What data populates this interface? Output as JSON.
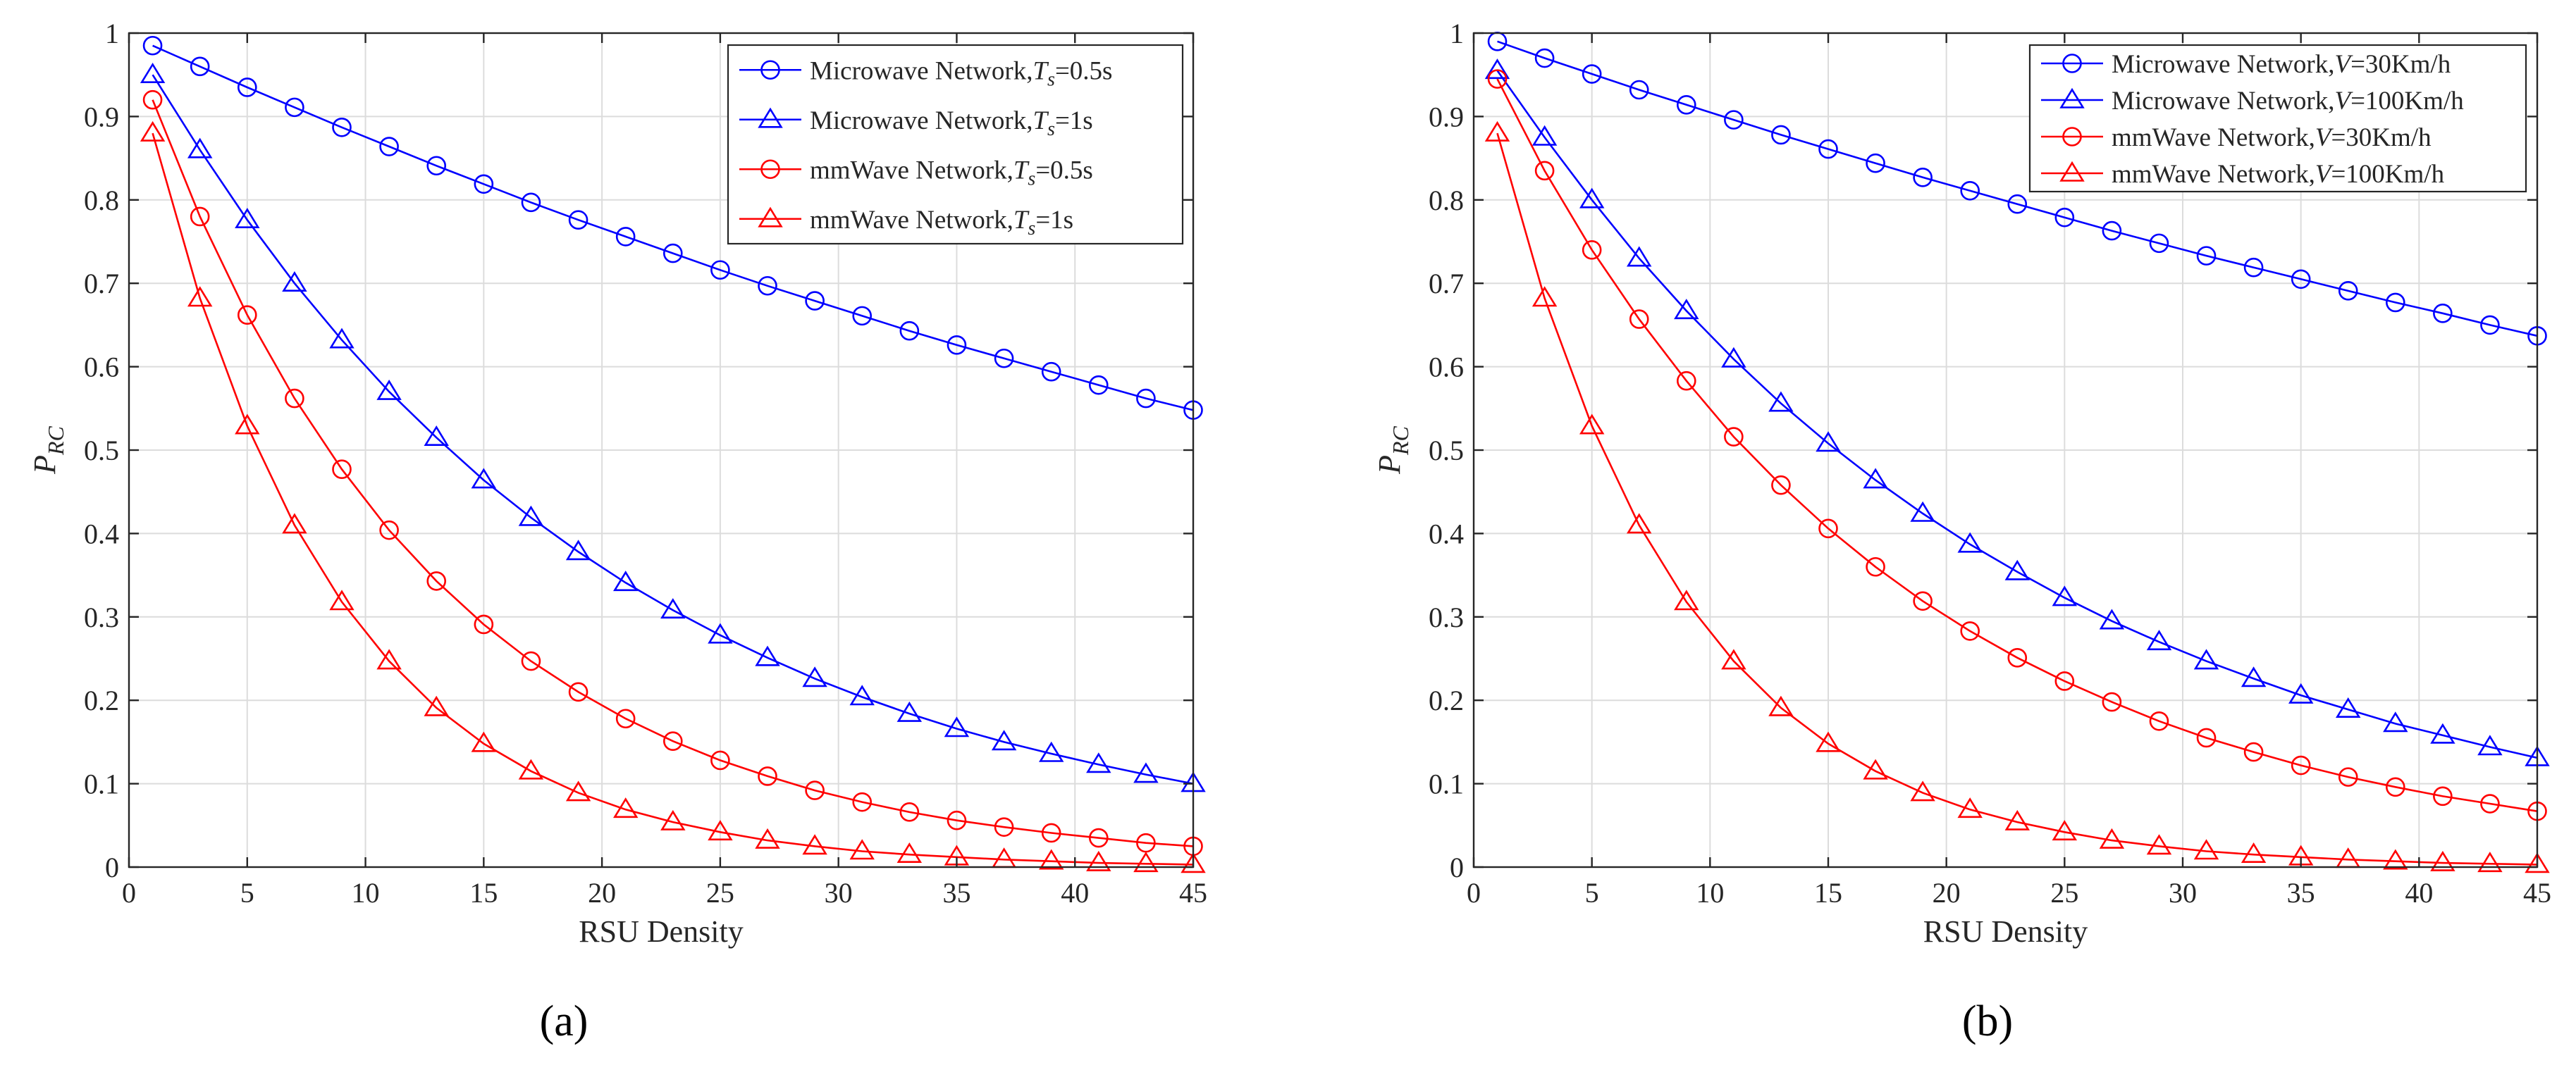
{
  "figure": {
    "captions": [
      "(a)",
      "(b)"
    ]
  },
  "chart_data": [
    {
      "type": "line",
      "panel": "a",
      "caption_letter": "a",
      "xlabel": "RSU Density",
      "ylabel_main": "P",
      "ylabel_sub": "RC",
      "xlim": [
        0,
        45
      ],
      "ylim": [
        0,
        1
      ],
      "xticks": [
        0,
        5,
        10,
        15,
        20,
        25,
        30,
        35,
        40,
        45
      ],
      "yticks": [
        0,
        0.1,
        0.2,
        0.3,
        0.4,
        0.5,
        0.6,
        0.7,
        0.8,
        0.9,
        1
      ],
      "ytick_labels": [
        "0",
        "0.1",
        "0.2",
        "0.3",
        "0.4",
        "0.5",
        "0.6",
        "0.7",
        "0.8",
        "0.9",
        "1"
      ],
      "grid": true,
      "legend_position": "top-right",
      "x": [
        1,
        3,
        5,
        7,
        9,
        11,
        13,
        15,
        17,
        19,
        21,
        23,
        25,
        27,
        29,
        31,
        33,
        35,
        37,
        39,
        41,
        43,
        45
      ],
      "series": [
        {
          "name": "Microwave Network,Ts=0.5s",
          "legend_prefix": "Microwave Network,",
          "legend_var": "T",
          "legend_sub": "s",
          "legend_suffix": "=0.5s",
          "color": "#0000ff",
          "marker": "circle",
          "values": [
            0.985,
            0.96,
            0.935,
            0.911,
            0.887,
            0.864,
            0.841,
            0.819,
            0.797,
            0.776,
            0.756,
            0.736,
            0.716,
            0.697,
            0.679,
            0.661,
            0.643,
            0.626,
            0.61,
            0.594,
            0.578,
            0.562,
            0.548
          ]
        },
        {
          "name": "Microwave Network,Ts=1s",
          "legend_prefix": "Microwave Network,",
          "legend_var": "T",
          "legend_sub": "s",
          "legend_suffix": "=1s",
          "color": "#0000ff",
          "marker": "triangle",
          "values": [
            0.95,
            0.86,
            0.776,
            0.7,
            0.632,
            0.57,
            0.515,
            0.464,
            0.419,
            0.378,
            0.341,
            0.308,
            0.278,
            0.251,
            0.226,
            0.204,
            0.184,
            0.166,
            0.15,
            0.136,
            0.123,
            0.111,
            0.1
          ]
        },
        {
          "name": "mmWave Network,Ts=0.5s",
          "legend_prefix": "mmWave Network,",
          "legend_var": "T",
          "legend_sub": "s",
          "legend_suffix": "=0.5s",
          "color": "#ff0000",
          "marker": "circle",
          "values": [
            0.92,
            0.78,
            0.662,
            0.562,
            0.477,
            0.404,
            0.343,
            0.291,
            0.247,
            0.21,
            0.178,
            0.151,
            0.128,
            0.109,
            0.092,
            0.078,
            0.066,
            0.056,
            0.048,
            0.041,
            0.035,
            0.029,
            0.025
          ]
        },
        {
          "name": "mmWave Network,Ts=1s",
          "legend_prefix": "mmWave Network,",
          "legend_var": "T",
          "legend_sub": "s",
          "legend_suffix": "=1s",
          "color": "#ff0000",
          "marker": "triangle",
          "values": [
            0.88,
            0.682,
            0.529,
            0.41,
            0.318,
            0.247,
            0.191,
            0.148,
            0.115,
            0.089,
            0.069,
            0.054,
            0.042,
            0.032,
            0.025,
            0.019,
            0.015,
            0.012,
            0.009,
            0.007,
            0.005,
            0.004,
            0.003
          ]
        }
      ]
    },
    {
      "type": "line",
      "panel": "b",
      "caption_letter": "b",
      "xlabel": "RSU Density",
      "ylabel_main": "P",
      "ylabel_sub": "RC",
      "xlim": [
        0,
        45
      ],
      "ylim": [
        0,
        1
      ],
      "xticks": [
        0,
        5,
        10,
        15,
        20,
        25,
        30,
        35,
        40,
        45
      ],
      "yticks": [
        0,
        0.1,
        0.2,
        0.3,
        0.4,
        0.5,
        0.6,
        0.7,
        0.8,
        0.9,
        1
      ],
      "ytick_labels": [
        "0",
        "0.1",
        "0.2",
        "0.3",
        "0.4",
        "0.5",
        "0.6",
        "0.7",
        "0.8",
        "0.9",
        "1"
      ],
      "grid": true,
      "legend_position": "top-right",
      "x": [
        1,
        3,
        5,
        7,
        9,
        11,
        13,
        15,
        17,
        19,
        21,
        23,
        25,
        27,
        29,
        31,
        33,
        35,
        37,
        39,
        41,
        43,
        45
      ],
      "series": [
        {
          "name": "Microwave Network,V=30Km/h",
          "legend_prefix": "Microwave Network,",
          "legend_var": "V",
          "legend_sub": "",
          "legend_suffix": "=30Km/h",
          "color": "#0000ff",
          "marker": "circle",
          "values": [
            0.99,
            0.97,
            0.951,
            0.932,
            0.914,
            0.896,
            0.878,
            0.861,
            0.844,
            0.827,
            0.811,
            0.795,
            0.779,
            0.763,
            0.748,
            0.733,
            0.719,
            0.705,
            0.691,
            0.677,
            0.664,
            0.65,
            0.637
          ]
        },
        {
          "name": "Microwave Network,V=100Km/h",
          "legend_prefix": "Microwave Network,",
          "legend_var": "V",
          "legend_sub": "",
          "legend_suffix": "=100Km/h",
          "color": "#0000ff",
          "marker": "triangle",
          "values": [
            0.955,
            0.875,
            0.8,
            0.73,
            0.667,
            0.609,
            0.556,
            0.508,
            0.464,
            0.424,
            0.387,
            0.354,
            0.323,
            0.295,
            0.27,
            0.247,
            0.226,
            0.206,
            0.189,
            0.172,
            0.158,
            0.144,
            0.131
          ]
        },
        {
          "name": "mmWave Network,V=30Km/h",
          "legend_prefix": "mmWave Network,",
          "legend_var": "V",
          "legend_sub": "",
          "legend_suffix": "=30Km/h",
          "color": "#ff0000",
          "marker": "circle",
          "values": [
            0.945,
            0.835,
            0.74,
            0.657,
            0.583,
            0.516,
            0.458,
            0.406,
            0.36,
            0.319,
            0.283,
            0.251,
            0.223,
            0.198,
            0.175,
            0.155,
            0.138,
            0.122,
            0.108,
            0.096,
            0.085,
            0.076,
            0.067
          ]
        },
        {
          "name": "mmWave Network,V=100Km/h",
          "legend_prefix": "mmWave Network,",
          "legend_var": "V",
          "legend_sub": "",
          "legend_suffix": "=100Km/h",
          "color": "#ff0000",
          "marker": "triangle",
          "values": [
            0.88,
            0.682,
            0.529,
            0.41,
            0.318,
            0.247,
            0.191,
            0.148,
            0.115,
            0.089,
            0.069,
            0.054,
            0.042,
            0.032,
            0.025,
            0.019,
            0.015,
            0.012,
            0.009,
            0.007,
            0.005,
            0.004,
            0.003
          ]
        }
      ]
    }
  ]
}
